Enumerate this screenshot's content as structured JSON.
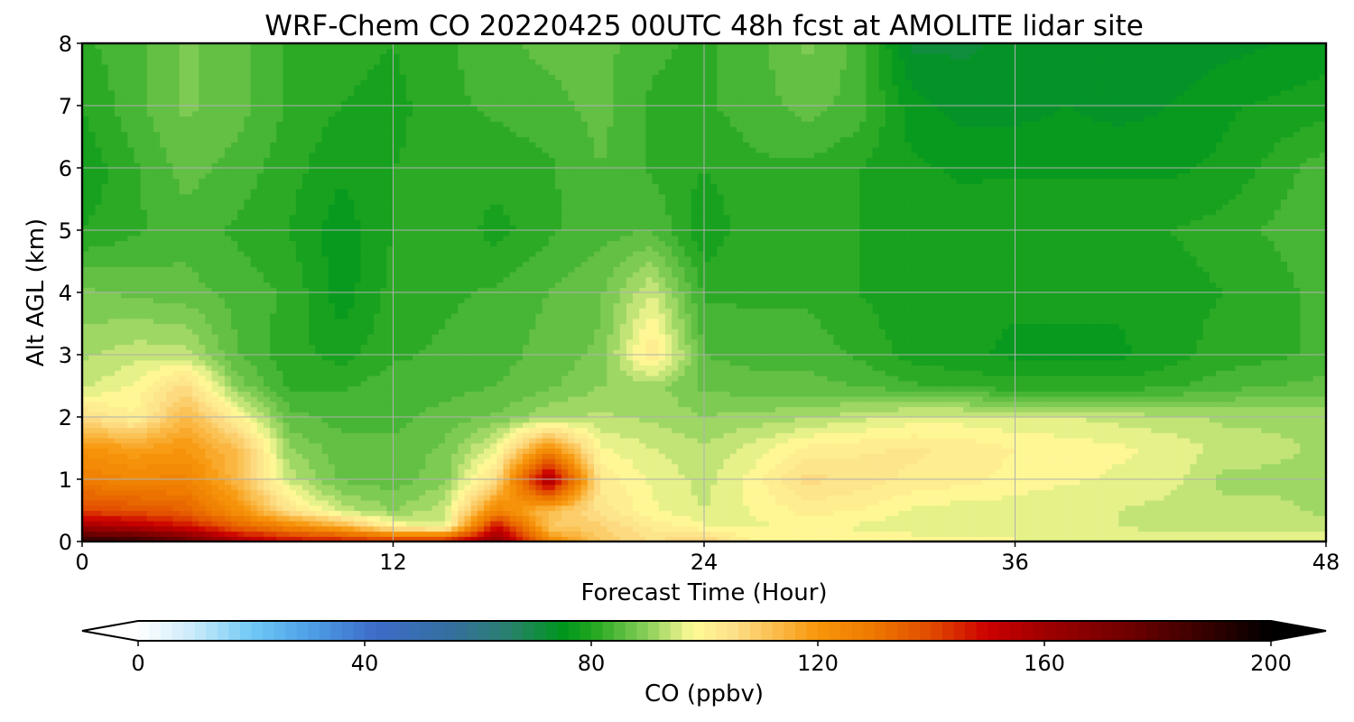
{
  "chart_data": {
    "type": "heatmap",
    "subtype": "filled-contour",
    "title": "WRF-Chem CO  20220425 00UTC 48h fcst at AMOLITE lidar site",
    "xlabel": "Forecast Time (Hour)",
    "ylabel": "Alt AGL (km)",
    "xlim": [
      0,
      48
    ],
    "ylim": [
      0,
      8
    ],
    "xticks": [
      "0",
      "12",
      "24",
      "36",
      "48"
    ],
    "yticks": [
      "0",
      "1",
      "2",
      "3",
      "4",
      "5",
      "6",
      "7",
      "8"
    ],
    "grid": true,
    "colorbar": {
      "label": "CO  (ppbv)",
      "range": [
        0,
        200
      ],
      "ticks": [
        "0",
        "40",
        "80",
        "120",
        "160",
        "200"
      ],
      "extend": "both",
      "stops": [
        {
          "v": 0,
          "color": "#ffffff"
        },
        {
          "v": 10,
          "color": "#c8eafa"
        },
        {
          "v": 20,
          "color": "#6fc9f5"
        },
        {
          "v": 30,
          "color": "#4fa0e6"
        },
        {
          "v": 42,
          "color": "#3c6cc8"
        },
        {
          "v": 55,
          "color": "#356fa0"
        },
        {
          "v": 65,
          "color": "#2a8070"
        },
        {
          "v": 75,
          "color": "#00961e"
        },
        {
          "v": 80,
          "color": "#1ea51e"
        },
        {
          "v": 90,
          "color": "#8cd05a"
        },
        {
          "v": 98,
          "color": "#fffa96"
        },
        {
          "v": 105,
          "color": "#fde08a"
        },
        {
          "v": 112,
          "color": "#fbbf50"
        },
        {
          "v": 120,
          "color": "#f7960a"
        },
        {
          "v": 130,
          "color": "#ee7800"
        },
        {
          "v": 140,
          "color": "#e14a00"
        },
        {
          "v": 150,
          "color": "#cc0000"
        },
        {
          "v": 160,
          "color": "#a00000"
        },
        {
          "v": 175,
          "color": "#6e0000"
        },
        {
          "v": 190,
          "color": "#300000"
        },
        {
          "v": 200,
          "color": "#000000"
        }
      ]
    },
    "x_hours": [
      0,
      2,
      4,
      6,
      8,
      10,
      12,
      14,
      16,
      18,
      20,
      22,
      24,
      26,
      28,
      30,
      32,
      34,
      36,
      38,
      40,
      42,
      44,
      46,
      48
    ],
    "y_km": [
      0,
      0.25,
      0.5,
      1,
      1.5,
      2,
      2.5,
      3,
      4,
      5,
      6,
      7,
      8
    ],
    "values": [
      [
        192,
        190,
        178,
        158,
        150,
        148,
        145,
        148,
        165,
        125,
        110,
        105,
        108,
        100,
        100,
        99,
        99,
        98,
        98,
        97,
        97,
        97,
        96,
        96,
        96
      ],
      [
        160,
        155,
        148,
        135,
        125,
        115,
        100,
        95,
        150,
        110,
        108,
        102,
        98,
        97,
        98,
        97,
        96,
        96,
        95,
        95,
        95,
        94,
        94,
        94,
        94
      ],
      [
        140,
        138,
        135,
        122,
        104,
        94,
        90,
        94,
        125,
        112,
        104,
        98,
        95,
        98,
        101,
        100,
        97,
        96,
        96,
        95,
        95,
        94,
        93,
        93,
        92
      ],
      [
        128,
        125,
        126,
        113,
        94,
        87,
        86,
        89,
        106,
        160,
        102,
        97,
        94,
        99,
        106,
        104,
        102,
        101,
        99,
        98,
        97,
        96,
        92,
        92,
        92
      ],
      [
        121,
        118,
        120,
        112,
        90,
        86,
        86,
        88,
        97,
        123,
        98,
        95,
        93,
        96,
        101,
        102,
        103,
        102,
        100,
        99,
        98,
        97,
        94,
        93,
        92
      ],
      [
        106,
        100,
        114,
        100,
        86,
        84,
        84,
        86,
        88,
        92,
        93,
        92,
        90,
        91,
        92,
        94,
        96,
        96,
        95,
        95,
        94,
        93,
        92,
        92,
        92
      ],
      [
        94,
        98,
        106,
        89,
        82,
        82,
        84,
        84,
        85,
        87,
        90,
        91,
        87,
        86,
        86,
        85,
        83,
        82,
        81,
        81,
        81,
        82,
        84,
        85,
        86
      ],
      [
        92,
        94,
        94,
        85,
        81,
        79,
        82,
        83,
        84,
        86,
        88,
        103,
        85,
        84,
        84,
        82,
        79,
        78,
        77,
        77,
        77,
        79,
        81,
        82,
        83
      ],
      [
        88,
        87,
        86,
        84,
        82,
        76,
        81,
        82,
        83,
        85,
        87,
        95,
        82,
        82,
        82,
        80,
        78,
        78,
        78,
        78,
        78,
        79,
        80,
        81,
        84
      ],
      [
        80,
        82,
        84,
        82,
        80,
        76,
        80,
        82,
        79,
        82,
        84,
        85,
        78,
        82,
        82,
        80,
        79,
        79,
        80,
        80,
        80,
        80,
        81,
        83,
        85
      ],
      [
        78,
        82,
        86,
        84,
        81,
        78,
        80,
        81,
        81,
        82,
        85,
        82,
        80,
        82,
        82,
        80,
        78,
        77,
        77,
        77,
        77,
        77,
        78,
        81,
        84
      ],
      [
        80,
        84,
        88,
        86,
        82,
        80,
        79,
        82,
        83,
        84,
        86,
        82,
        82,
        84,
        86,
        84,
        76,
        74,
        74,
        75,
        74,
        75,
        77,
        78,
        79
      ],
      [
        82,
        84,
        88,
        86,
        82,
        81,
        80,
        82,
        84,
        86,
        86,
        83,
        82,
        84,
        88,
        84,
        72,
        72,
        73,
        74,
        73,
        73,
        74,
        75,
        76
      ]
    ]
  }
}
